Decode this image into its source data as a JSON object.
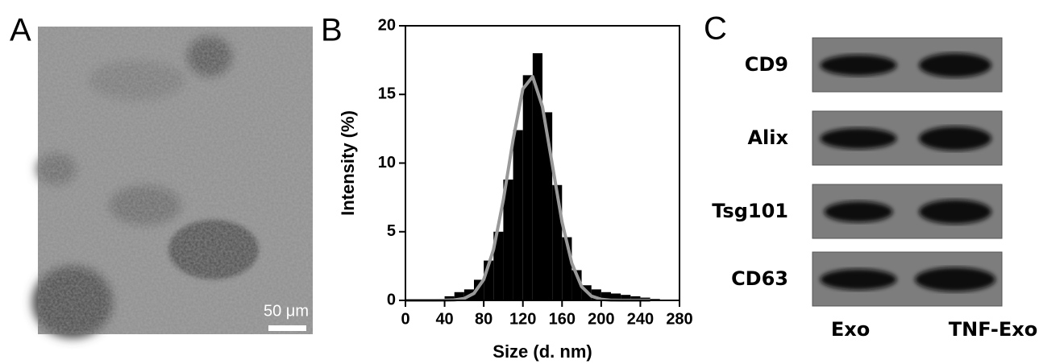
{
  "panel_a": {
    "label": "A",
    "scale_bar": "50 μm"
  },
  "chart_data": {
    "type": "histogram",
    "label": "B",
    "x_label": "Size (d. nm)",
    "y_label": "Intensity (%)",
    "bins": [
      0,
      10,
      20,
      30,
      40,
      50,
      60,
      70,
      80,
      90,
      100,
      110,
      120,
      130,
      140,
      150,
      160,
      170,
      180,
      190,
      200,
      210,
      220,
      230,
      240,
      250,
      260
    ],
    "values": [
      0,
      0,
      0,
      0.1,
      0.3,
      0.6,
      0.8,
      1.5,
      2.9,
      5.0,
      8.8,
      12.4,
      16.4,
      18.0,
      13.7,
      8.4,
      4.6,
      2.2,
      1.1,
      0.8,
      0.6,
      0.5,
      0.4,
      0.3,
      0.2,
      0.1
    ],
    "color": "#000000",
    "fit": {
      "x": [
        0,
        10,
        20,
        30,
        40,
        50,
        60,
        70,
        80,
        90,
        100,
        110,
        120,
        130,
        140,
        150,
        160,
        170,
        180,
        190,
        200,
        210,
        220,
        230,
        240,
        250
      ],
      "values": [
        0,
        0,
        0,
        0,
        0.01,
        0.03,
        0.14,
        0.51,
        1.52,
        3.7,
        7.3,
        11.7,
        15.4,
        16.3,
        14.1,
        9.9,
        5.7,
        2.7,
        1.0,
        0.31,
        0.08,
        0.01,
        0,
        0,
        0,
        0
      ],
      "color": "#999999"
    },
    "xlim": [
      0,
      280
    ],
    "xticks": [
      0,
      40,
      80,
      120,
      160,
      200,
      240,
      280
    ],
    "ylim": [
      0,
      20
    ],
    "yticks": [
      0,
      5,
      10,
      15,
      20
    ]
  },
  "panel_c": {
    "label": "C",
    "rows": [
      "CD9",
      "Alix",
      "Tsg101",
      "CD63"
    ],
    "columns": [
      "Exo",
      "TNF-Exo"
    ]
  }
}
